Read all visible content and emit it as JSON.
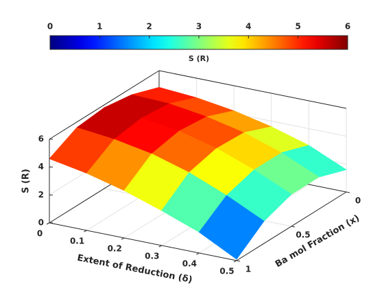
{
  "chart_data": {
    "type": "surface",
    "colorbar_label": "S (R)",
    "xlabel": "Extent of Reduction (δ)",
    "ylabel": "Ba mol Fraction (x)",
    "zlabel": "S (R)",
    "delta": [
      0,
      0.1,
      0.2,
      0.3,
      0.4,
      0.5
    ],
    "x": [
      0,
      0.25,
      0.5,
      0.75,
      1
    ],
    "z": [
      [
        4.8,
        5.5,
        5.8,
        5.6,
        4.6
      ],
      [
        4.6,
        5.4,
        5.6,
        5.3,
        4.1
      ],
      [
        4.2,
        5.0,
        5.2,
        4.8,
        3.4
      ],
      [
        3.6,
        4.4,
        4.5,
        4.0,
        2.5
      ],
      [
        2.8,
        3.5,
        3.5,
        2.9,
        1.5
      ],
      [
        1.6,
        2.3,
        2.3,
        1.6,
        0.1
      ]
    ],
    "delta_lim": [
      0,
      0.5
    ],
    "delta_ticks": [
      0,
      0.1,
      0.2,
      0.3,
      0.4,
      0.5
    ],
    "x_lim": [
      0,
      1
    ],
    "x_ticks": [
      0,
      0.5,
      1
    ],
    "zlim": [
      0,
      6
    ],
    "zticks": [
      0,
      2,
      4,
      6
    ],
    "clim": [
      0,
      6
    ],
    "cticks": [
      0,
      1,
      2,
      3,
      4,
      5,
      6
    ],
    "colormap": "jet",
    "grid": true
  }
}
